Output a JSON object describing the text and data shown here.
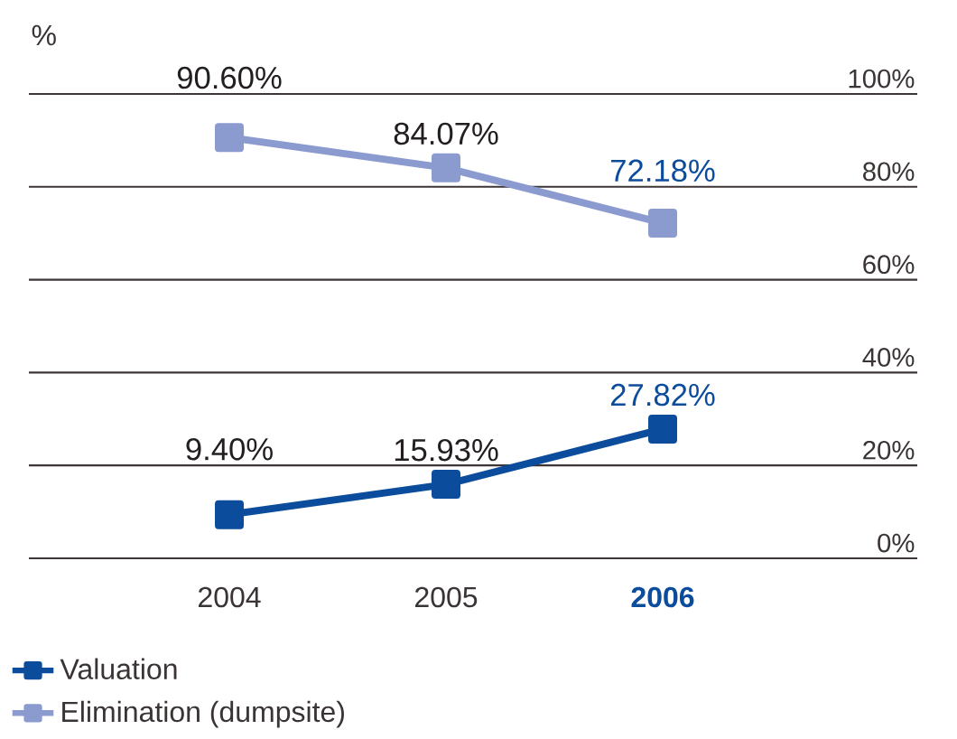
{
  "chart_data": {
    "type": "line",
    "ylabel": "%",
    "categories": [
      "2004",
      "2005",
      "2006"
    ],
    "series": [
      {
        "name": "Valuation",
        "color": "#0b4c9c",
        "values": [
          9.4,
          15.93,
          27.82
        ],
        "value_labels": [
          "9.40%",
          "15.93%",
          "27.82%"
        ]
      },
      {
        "name": "Elimination (dumpsite)",
        "color": "#8b9bcf",
        "values": [
          90.6,
          84.07,
          72.18
        ],
        "value_labels": [
          "90.60%",
          "84.07%",
          "72.18%"
        ]
      }
    ],
    "ylim": [
      0,
      100
    ],
    "yticks": [
      {
        "value": 0,
        "label": "0%"
      },
      {
        "value": 20,
        "label": "20%"
      },
      {
        "value": 40,
        "label": "40%"
      },
      {
        "value": 60,
        "label": "60%"
      },
      {
        "value": 80,
        "label": "80%"
      },
      {
        "value": 100,
        "label": "100%"
      }
    ],
    "grid": "y",
    "legend": "bottom left",
    "marker": "square",
    "line_style": "solid"
  }
}
